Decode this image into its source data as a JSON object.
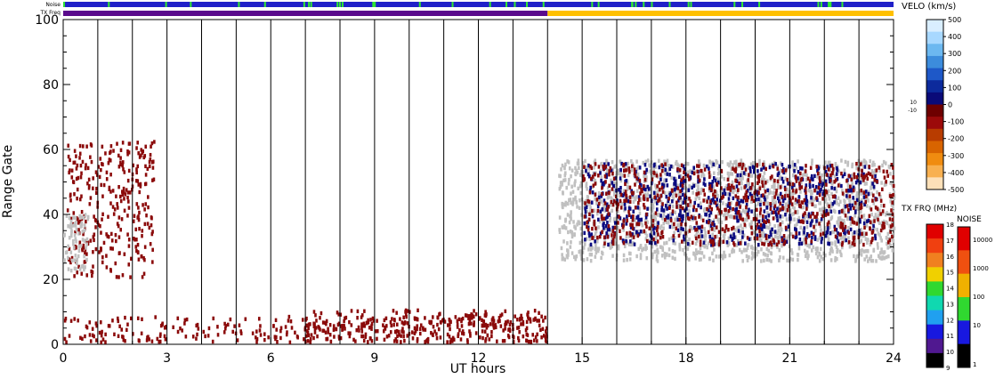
{
  "chart_data": {
    "type": "scatter",
    "xlabel": "UT hours",
    "ylabel": "Range Gate",
    "xlim": [
      0,
      24
    ],
    "ylim": [
      0,
      100
    ],
    "x_ticks": [
      0,
      3,
      6,
      9,
      12,
      15,
      18,
      21,
      24
    ],
    "y_ticks": [
      0,
      20,
      40,
      60,
      80,
      100
    ],
    "hour_gridlines": [
      1,
      2,
      3,
      4,
      5,
      6,
      7,
      8,
      9,
      10,
      11,
      12,
      13,
      14,
      15,
      16,
      17,
      18,
      19,
      20,
      21,
      22,
      23
    ],
    "top_strips": [
      {
        "label": "Noise",
        "dominant_color": "#2020c8",
        "accent_color": "#30e830"
      },
      {
        "label": "TX Freq",
        "segments": [
          {
            "start": 0,
            "end": 14,
            "color": "#5a0a8c"
          },
          {
            "start": 14,
            "end": 24,
            "color": "#ffc000"
          }
        ]
      }
    ],
    "velocity_colorbar": {
      "title": "VELO (km/s)",
      "ticks": [
        500,
        400,
        300,
        200,
        100,
        0,
        -100,
        -200,
        -300,
        -400,
        -500
      ],
      "inner_labels": [
        "10",
        "-10"
      ],
      "colors_top_to_bottom": [
        "#d9eeff",
        "#a8d8ff",
        "#6cb8f0",
        "#3c8cdc",
        "#1e58c8",
        "#0c2a9c",
        "#0a0a78",
        "#6e0000",
        "#9c0a0a",
        "#b83c00",
        "#d86400",
        "#f08c10",
        "#f8b050",
        "#fde0b8"
      ]
    },
    "frequency_colorbar": {
      "title": "TX FRQ (MHz)",
      "ticks": [
        18,
        17,
        16,
        15,
        14,
        13,
        12,
        11,
        10,
        9
      ],
      "colors_top_to_bottom": [
        "#e00000",
        "#f04010",
        "#f08020",
        "#f0d000",
        "#30d830",
        "#10d8b0",
        "#20a0f0",
        "#1818e0",
        "#501890",
        "#000000"
      ]
    },
    "noise_colorbar": {
      "title": "NOISE",
      "ticks": [
        "10000",
        "1000",
        "100",
        "10",
        "1"
      ],
      "colors_top_to_bottom": [
        "#e00000",
        "#f05010",
        "#f0b000",
        "#30d830",
        "#1818e0",
        "#000000"
      ]
    },
    "scatter_classes": [
      {
        "name": "ground",
        "color": "#c0c0c0"
      },
      {
        "name": "negative",
        "color": "#8b0a0a"
      },
      {
        "name": "positive",
        "color": "#0a0a80"
      }
    ],
    "features": [
      {
        "class": "negative",
        "x_range": [
          0,
          14
        ],
        "y_range": [
          0,
          8
        ]
      },
      {
        "class": "negative",
        "x_range": [
          7,
          14
        ],
        "y_range": [
          0,
          10
        ]
      },
      {
        "class": "negative",
        "x_range": [
          0.1,
          2.6
        ],
        "y_range": [
          20,
          62
        ]
      },
      {
        "class": "ground",
        "x_range": [
          0,
          0.7
        ],
        "y_range": [
          22,
          40
        ]
      },
      {
        "class": "ground",
        "x_range": [
          14.3,
          24
        ],
        "y_range": [
          25,
          56
        ]
      },
      {
        "class": "positive",
        "x_range": [
          15,
          23.5
        ],
        "y_range": [
          30,
          55
        ]
      },
      {
        "class": "negative",
        "x_range": [
          15,
          24
        ],
        "y_range": [
          30,
          55
        ]
      }
    ]
  }
}
